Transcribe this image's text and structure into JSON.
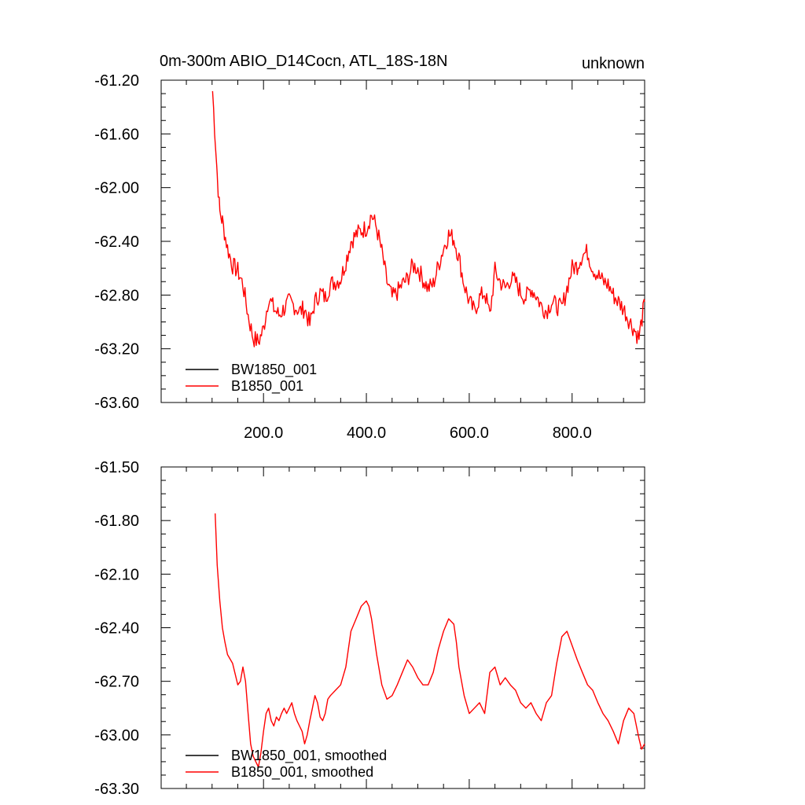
{
  "header": {
    "title": "0m-300m ABIO_D14Cocn, ATL_18S-18N",
    "right_label": "unknown"
  },
  "colors": {
    "bw1850": "#000000",
    "b1850": "#ff0000",
    "axis": "#000000"
  },
  "chart_data": [
    {
      "type": "line",
      "title": "0m-300m ABIO_D14Cocn, ATL_18S-18N",
      "xlabel": "",
      "ylabel": "",
      "xlim": [
        1,
        941
      ],
      "ylim": [
        -63.6,
        -61.2
      ],
      "x_ticks": [
        200,
        400,
        600,
        800
      ],
      "x_tick_labels": [
        "200.0",
        "400.0",
        "600.0",
        "800.0"
      ],
      "y_ticks": [
        -61.2,
        -61.6,
        -62.0,
        -62.4,
        -62.8,
        -63.2,
        -63.6
      ],
      "y_tick_labels": [
        "-61.20",
        "-61.60",
        "-62.00",
        "-62.40",
        "-62.80",
        "-63.20",
        "-63.60"
      ],
      "grid": false,
      "legend_position": "bottom-left",
      "noisy": true,
      "series": [
        {
          "name": "BW1850_001",
          "color": "#000000",
          "x": [],
          "values": []
        },
        {
          "name": "B1850_001",
          "color": "#ff0000",
          "x": [
            101,
            105,
            110,
            115,
            120,
            130,
            140,
            150,
            160,
            170,
            180,
            190,
            200,
            210,
            220,
            230,
            240,
            250,
            260,
            270,
            280,
            290,
            300,
            310,
            320,
            330,
            340,
            350,
            360,
            370,
            380,
            390,
            400,
            410,
            420,
            430,
            440,
            450,
            460,
            470,
            480,
            490,
            500,
            510,
            520,
            530,
            540,
            550,
            560,
            570,
            580,
            590,
            600,
            610,
            620,
            630,
            640,
            650,
            660,
            670,
            680,
            690,
            700,
            710,
            720,
            730,
            740,
            750,
            760,
            770,
            780,
            790,
            800,
            810,
            820,
            830,
            840,
            850,
            860,
            870,
            880,
            890,
            900,
            910,
            920,
            930,
            941
          ],
          "values": [
            -61.28,
            -61.55,
            -61.9,
            -62.18,
            -62.25,
            -62.45,
            -62.58,
            -62.62,
            -62.72,
            -62.95,
            -63.12,
            -63.15,
            -63.05,
            -62.82,
            -62.9,
            -62.95,
            -62.9,
            -62.85,
            -62.88,
            -62.92,
            -62.9,
            -63.02,
            -62.85,
            -62.78,
            -62.82,
            -62.72,
            -62.7,
            -62.68,
            -62.55,
            -62.4,
            -62.35,
            -62.32,
            -62.3,
            -62.2,
            -62.3,
            -62.48,
            -62.7,
            -62.82,
            -62.78,
            -62.72,
            -62.68,
            -62.58,
            -62.6,
            -62.68,
            -62.75,
            -62.72,
            -62.58,
            -62.45,
            -62.35,
            -62.38,
            -62.52,
            -62.72,
            -62.85,
            -62.92,
            -62.82,
            -62.78,
            -62.95,
            -62.62,
            -62.7,
            -62.75,
            -62.68,
            -62.7,
            -62.78,
            -62.82,
            -62.75,
            -62.8,
            -62.88,
            -62.92,
            -62.85,
            -62.88,
            -62.9,
            -62.75,
            -62.6,
            -62.58,
            -62.5,
            -62.48,
            -62.6,
            -62.65,
            -62.7,
            -62.72,
            -62.8,
            -62.85,
            -62.9,
            -62.98,
            -63.05,
            -63.12,
            -62.85
          ]
        }
      ]
    },
    {
      "type": "line",
      "title": "",
      "xlabel": "",
      "ylabel": "",
      "xlim": [
        1,
        941
      ],
      "ylim": [
        -63.3,
        -61.5
      ],
      "x_ticks": [
        200,
        400,
        600,
        800
      ],
      "x_tick_labels": [],
      "y_ticks": [
        -61.5,
        -61.8,
        -62.1,
        -62.4,
        -62.7,
        -63.0,
        -63.3
      ],
      "y_tick_labels": [
        "-61.50",
        "-61.80",
        "-62.10",
        "-62.40",
        "-62.70",
        "-63.00",
        "-63.30"
      ],
      "grid": false,
      "legend_position": "bottom-left",
      "noisy": false,
      "series": [
        {
          "name": "BW1850_001, smoothed",
          "color": "#000000",
          "x": [],
          "values": []
        },
        {
          "name": "B1850_001, smoothed",
          "color": "#ff0000",
          "x": [
            106,
            110,
            115,
            120,
            125,
            130,
            140,
            150,
            155,
            160,
            165,
            170,
            175,
            180,
            185,
            190,
            195,
            200,
            205,
            210,
            215,
            220,
            225,
            230,
            235,
            240,
            245,
            250,
            255,
            260,
            265,
            270,
            275,
            280,
            285,
            290,
            295,
            300,
            305,
            310,
            315,
            320,
            325,
            330,
            340,
            350,
            360,
            370,
            380,
            390,
            400,
            405,
            410,
            415,
            420,
            430,
            440,
            450,
            460,
            470,
            480,
            490,
            500,
            510,
            520,
            530,
            540,
            550,
            560,
            570,
            575,
            580,
            590,
            600,
            610,
            620,
            630,
            640,
            650,
            660,
            670,
            680,
            690,
            700,
            710,
            720,
            730,
            740,
            750,
            760,
            770,
            780,
            790,
            800,
            810,
            820,
            830,
            840,
            850,
            860,
            870,
            880,
            890,
            900,
            910,
            920,
            930,
            935,
            941
          ],
          "values": [
            -61.76,
            -62.05,
            -62.25,
            -62.4,
            -62.48,
            -62.55,
            -62.6,
            -62.72,
            -62.7,
            -62.62,
            -62.7,
            -62.88,
            -63.05,
            -63.12,
            -63.15,
            -63.18,
            -63.1,
            -62.98,
            -62.88,
            -62.85,
            -62.92,
            -62.95,
            -62.9,
            -62.92,
            -62.88,
            -62.85,
            -62.88,
            -62.85,
            -62.82,
            -62.88,
            -62.92,
            -62.95,
            -62.98,
            -63.05,
            -63.0,
            -62.92,
            -62.85,
            -62.78,
            -62.82,
            -62.9,
            -62.92,
            -62.88,
            -62.8,
            -62.78,
            -62.75,
            -62.72,
            -62.62,
            -62.42,
            -62.35,
            -62.28,
            -62.25,
            -62.28,
            -62.35,
            -62.45,
            -62.55,
            -62.72,
            -62.8,
            -62.78,
            -62.72,
            -62.65,
            -62.58,
            -62.62,
            -62.68,
            -62.72,
            -62.72,
            -62.65,
            -62.52,
            -62.42,
            -62.35,
            -62.38,
            -62.48,
            -62.62,
            -62.78,
            -62.88,
            -62.85,
            -62.82,
            -62.88,
            -62.65,
            -62.62,
            -62.72,
            -62.68,
            -62.72,
            -62.75,
            -62.82,
            -62.85,
            -62.82,
            -62.88,
            -62.92,
            -62.82,
            -62.78,
            -62.6,
            -62.45,
            -62.42,
            -62.5,
            -62.58,
            -62.65,
            -62.72,
            -62.75,
            -62.82,
            -62.88,
            -62.92,
            -62.98,
            -63.05,
            -62.92,
            -62.85,
            -62.88,
            -63.02,
            -63.08,
            -63.05
          ]
        }
      ]
    }
  ]
}
